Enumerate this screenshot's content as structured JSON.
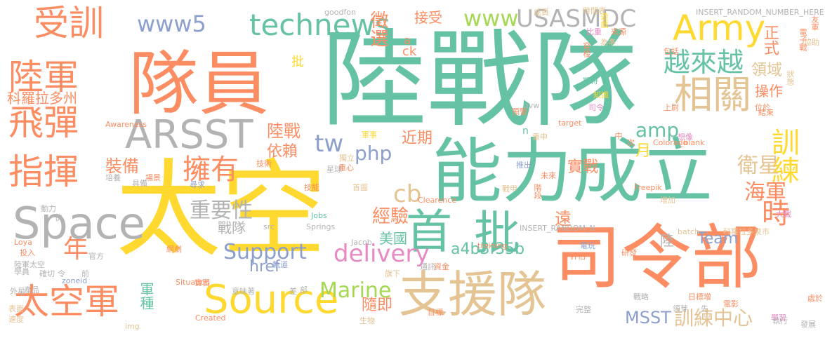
{
  "colors": {
    "green": "#66c2a5",
    "orange": "#fc8d62",
    "blue": "#8da0cb",
    "pink": "#e78ac3",
    "lime": "#a6d854",
    "yellow": "#ffd92f",
    "tan": "#e5c494",
    "gray": "#b3b3b3"
  },
  "words": [
    "陸戰隊",
    "太空",
    "司令部",
    "能力成立",
    "隊員",
    "支援隊",
    "Space",
    "Source",
    "ARSST",
    "首",
    "批",
    "Army",
    "相關",
    "太空軍",
    "指揮",
    "受訓",
    "陸軍",
    "飛彈",
    "越來越",
    "www5",
    "technews",
    "www",
    "USASMDC",
    "時",
    "訓練",
    "擁有",
    "年",
    "amp",
    "php",
    "delivery",
    "訓練中心",
    "衛星",
    "海軍",
    "MSST",
    "Marine",
    "Support",
    "Team",
    "tw",
    "cb",
    "科羅拉多州",
    "重要性",
    "經驗",
    "戰隊",
    "操作",
    "領域",
    "裝備",
    "陸戰",
    "依賴",
    "實戰",
    "正式",
    "接受",
    "徵選",
    "a4b3f35b",
    "軍種",
    "隨即",
    "美國",
    "遠",
    "陸",
    "href",
    "近期",
    "月",
    "ck",
    "a",
    "n",
    "批",
    "goodfon",
    "成員",
    "INSERT_RANDOM_NUMBER_HERE",
    "友軍",
    "時間表",
    "遊戲",
    "來源",
    "比重",
    "包括",
    "穿梭",
    "為準",
    "期待",
    "知識",
    "司令",
    "上尉",
    "位於",
    "結束",
    "想像",
    "狀態",
    "協助",
    "電子戰",
    "Awareness",
    "軍事",
    "重申",
    "中",
    "次",
    "Colorado",
    "_blank",
    "推出",
    "未來",
    "階段",
    "增加",
    "Freepik",
    "大戰",
    "獨立",
    "技術",
    "重心",
    "培養",
    "場景",
    "具備",
    "星球",
    "技能",
    "首圖",
    "戰甲",
    "Clearence",
    "動力",
    "快",
    "src",
    "Jobs",
    "Springs",
    "INSERT_RANDOM_N",
    "batch",
    "電玩",
    "科羅拉多泉市",
    "Loya",
    "投入",
    "Jacob",
    "training",
    "研發",
    "官方",
    "通訊",
    "資金",
    "評估",
    "陸軍太空",
    "學員",
    "確切",
    "令",
    "前",
    "zoneid",
    "旗下",
    "網劇",
    "實習",
    "Situation",
    "外星",
    "產品",
    "意味著",
    "差",
    "目標",
    "戰略",
    "日標增",
    "電影",
    "領芽",
    "先",
    "處於",
    "完整",
    "學習",
    "表面",
    "速度",
    "img",
    "Created",
    "生物",
    "執行",
    "發展",
    "部",
    "尋求",
    "軌道",
    "預警",
    "avw",
    "target",
    "科幻",
    "處",
    "座",
    "高"
  ]
}
